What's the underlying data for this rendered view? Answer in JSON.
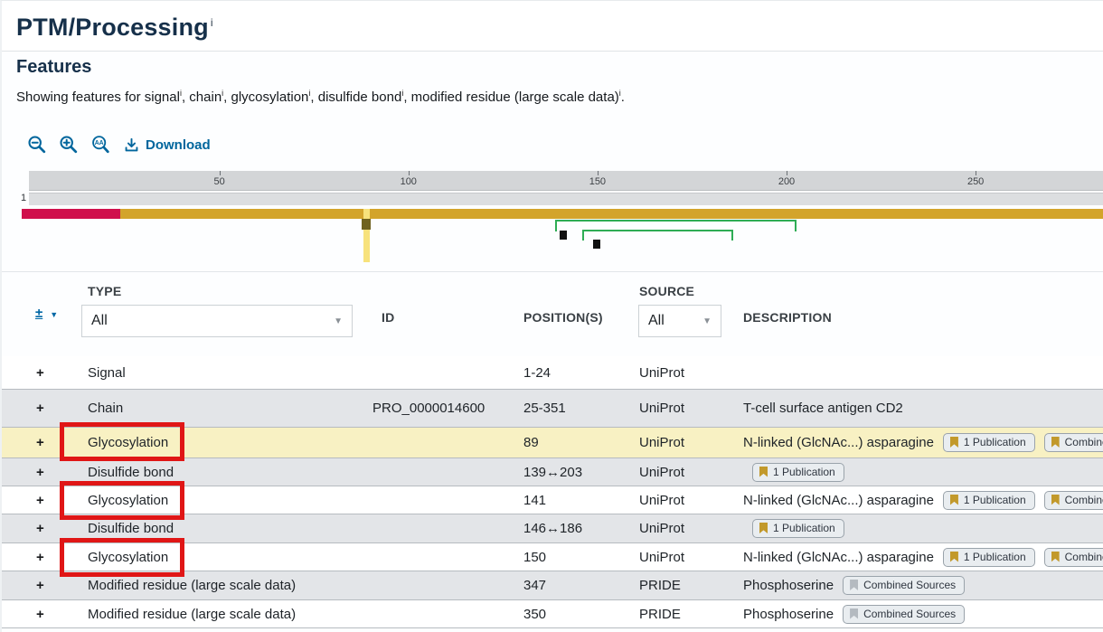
{
  "page": {
    "title": "PTM/Processing",
    "title_info": "i"
  },
  "features": {
    "heading": "Features",
    "intro_prefix": "Showing features for ",
    "items": [
      "signal",
      "chain",
      "glycosylation",
      "disulfide bond",
      "modified residue (large scale data)"
    ],
    "info_mark": "i",
    "intro_suffix": "."
  },
  "toolbar": {
    "download_label": "Download",
    "accent_color": "#01669d"
  },
  "viewer": {
    "start_label": "1",
    "ruler_ticks": [
      50,
      100,
      150,
      200,
      250
    ],
    "features": {
      "signal": {
        "start": 1,
        "end": 24
      },
      "chain": {
        "start": 25,
        "end": 351
      },
      "glycosylation_sites": [
        89,
        141,
        150
      ],
      "highlighted_site": 89,
      "disulfide_bonds": [
        [
          139,
          203
        ],
        [
          146,
          186
        ]
      ]
    },
    "colors": {
      "signal": "#d0104c",
      "chain": "#d3a42b",
      "bond": "#2fad55",
      "site_marker": "#111111",
      "highlight_column": "#f7e27c",
      "highlighted_marker": "#6f6220"
    }
  },
  "table": {
    "expand_all_label": "±",
    "headers": {
      "type": "TYPE",
      "id": "ID",
      "positions": "POSITION(S)",
      "source": "SOURCE",
      "description": "DESCRIPTION"
    },
    "filters": {
      "type_value": "All",
      "source_value": "All"
    },
    "rows": [
      {
        "expander": "+",
        "type": "Signal",
        "id": "",
        "positions": "1-24",
        "source": "UniProt",
        "description": "",
        "badges": [],
        "bg": "white",
        "boxed": false
      },
      {
        "expander": "+",
        "type": "Chain",
        "id": "PRO_0000014600",
        "positions": "25-351",
        "source": "UniProt",
        "description": "T-cell surface antigen CD2",
        "badges": [],
        "bg": "gray",
        "boxed": false
      },
      {
        "expander": "+",
        "type": "Glycosylation",
        "id": "",
        "positions": "89",
        "source": "UniProt",
        "description": "N-linked (GlcNAc...) asparagine",
        "badges": [
          {
            "label": "1 Publication",
            "ribbon": "gold"
          },
          {
            "label": "Combined Sources",
            "ribbon": "gold"
          }
        ],
        "bg": "yellow",
        "boxed": true
      },
      {
        "expander": "+",
        "type": "Disulfide bond",
        "id": "",
        "positions": "139↔203",
        "source": "UniProt",
        "description": "",
        "badges": [
          {
            "label": "1 Publication",
            "ribbon": "gold"
          }
        ],
        "bg": "gray",
        "boxed": false
      },
      {
        "expander": "+",
        "type": "Glycosylation",
        "id": "",
        "positions": "141",
        "source": "UniProt",
        "description": "N-linked (GlcNAc...) asparagine",
        "badges": [
          {
            "label": "1 Publication",
            "ribbon": "gold"
          },
          {
            "label": "Combined Sources",
            "ribbon": "gold"
          }
        ],
        "bg": "white",
        "boxed": true
      },
      {
        "expander": "+",
        "type": "Disulfide bond",
        "id": "",
        "positions": "146↔186",
        "source": "UniProt",
        "description": "",
        "badges": [
          {
            "label": "1 Publication",
            "ribbon": "gold"
          }
        ],
        "bg": "gray",
        "boxed": false
      },
      {
        "expander": "+",
        "type": "Glycosylation",
        "id": "",
        "positions": "150",
        "source": "UniProt",
        "description": "N-linked (GlcNAc...) asparagine",
        "badges": [
          {
            "label": "1 Publication",
            "ribbon": "gold"
          },
          {
            "label": "Combined Sources",
            "ribbon": "gold"
          }
        ],
        "bg": "white",
        "boxed": true
      },
      {
        "expander": "+",
        "type": "Modified residue (large scale data)",
        "id": "",
        "positions": "347",
        "source": "PRIDE",
        "description": "Phosphoserine",
        "badges": [
          {
            "label": "Combined Sources",
            "ribbon": "silver"
          }
        ],
        "bg": "gray",
        "boxed": false
      },
      {
        "expander": "+",
        "type": "Modified residue (large scale data)",
        "id": "",
        "positions": "350",
        "source": "PRIDE",
        "description": "Phosphoserine",
        "badges": [
          {
            "label": "Combined Sources",
            "ribbon": "silver"
          }
        ],
        "bg": "white",
        "boxed": false
      }
    ]
  },
  "annotation": {
    "box_color": "#e01616"
  }
}
